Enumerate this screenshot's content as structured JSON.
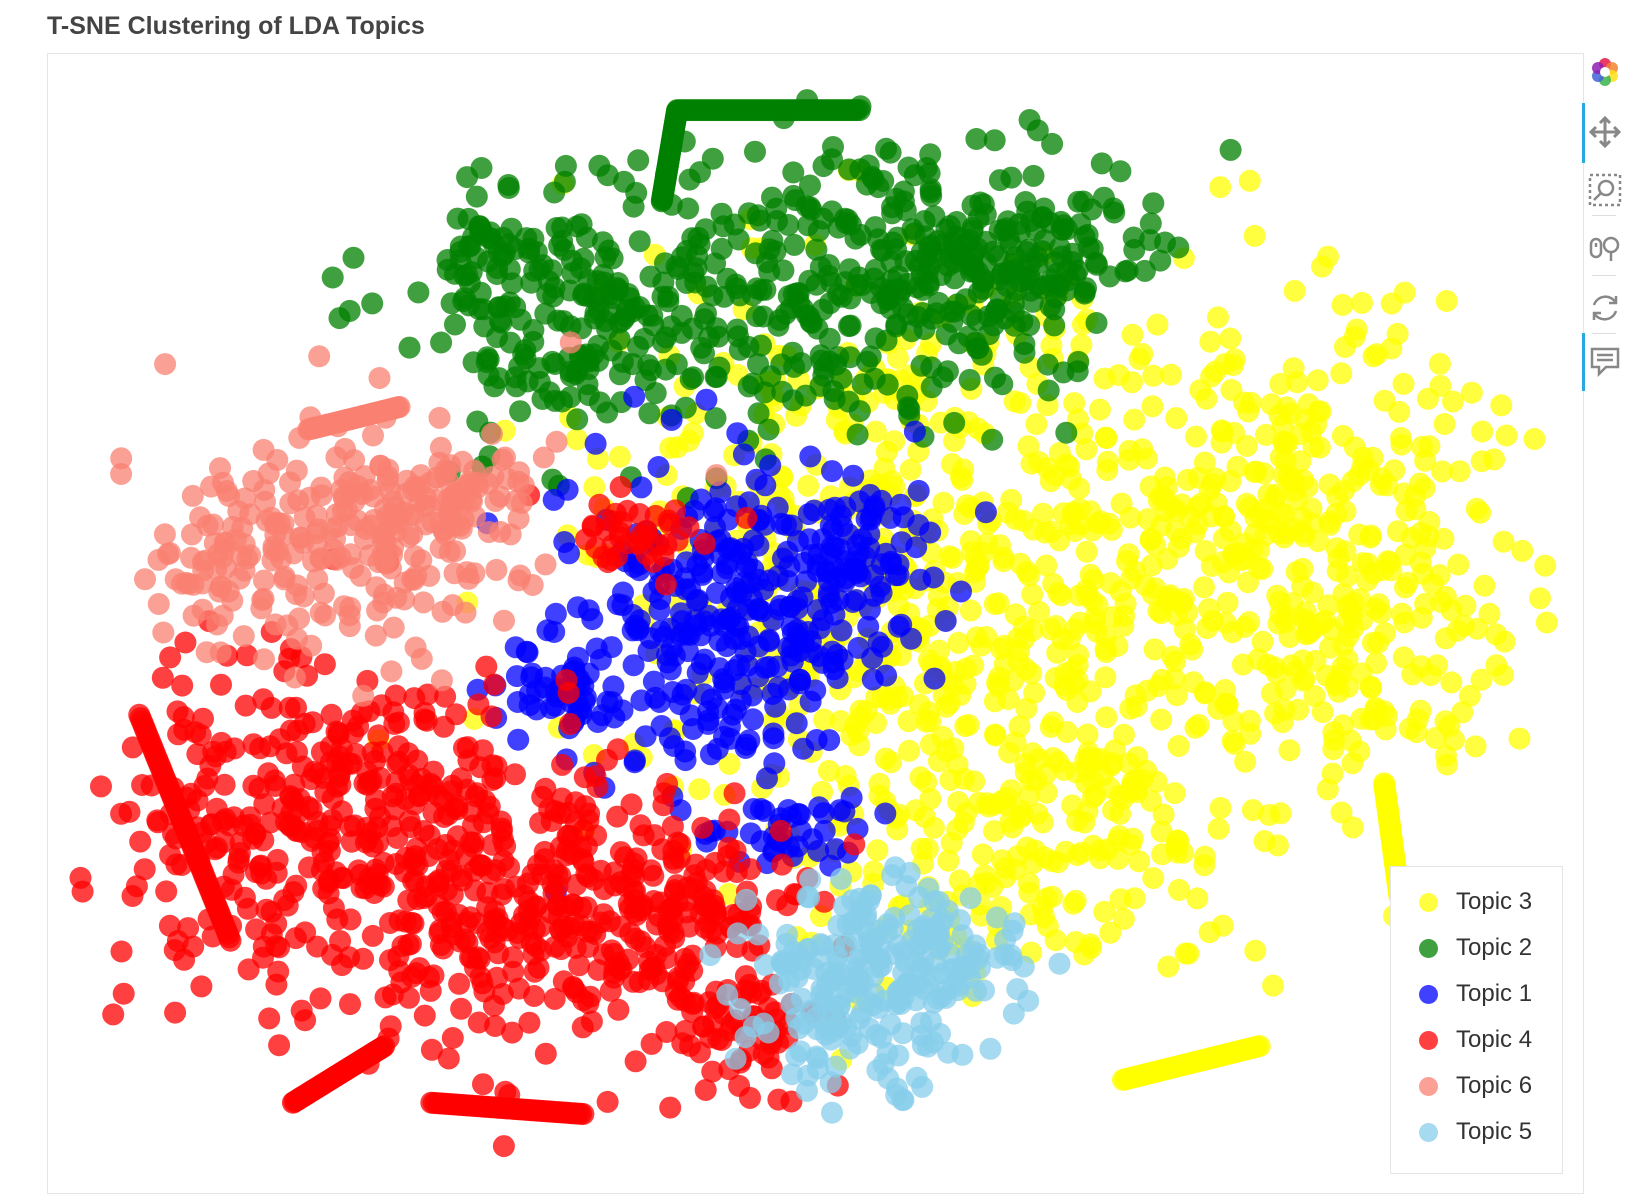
{
  "chart_data": {
    "type": "scatter",
    "title": "T-SNE Clustering of LDA Topics",
    "xlabel": "",
    "ylabel": "",
    "grid": false,
    "axes_visible": false,
    "legend_position": "bottom-right",
    "series": [
      {
        "name": "Topic 3",
        "color": "#ffff00",
        "clusters": [
          [
            [
              0.56,
              0.45,
              0.18,
              0.24,
              500
            ],
            [
              0.78,
              0.4,
              0.16,
              0.18,
              360
            ],
            [
              0.66,
              0.67,
              0.15,
              0.13,
              220
            ],
            [
              0.86,
              0.52,
              0.08,
              0.12,
              110
            ]
          ]
        ],
        "curves": [
          [
            0.7,
            0.9,
            0.79,
            0.87
          ],
          [
            0.87,
            0.64,
            0.88,
            0.74
          ]
        ]
      },
      {
        "name": "Topic 2",
        "color": "#008000",
        "clusters": [
          [
            [
              0.36,
              0.23,
              0.12,
              0.1,
              220
            ],
            [
              0.52,
              0.2,
              0.13,
              0.12,
              260
            ],
            [
              0.63,
              0.18,
              0.09,
              0.08,
              160
            ],
            [
              0.29,
              0.18,
              0.03,
              0.06,
              40
            ]
          ]
        ],
        "curves": [
          [
            0.4,
            0.13,
            0.41,
            0.05
          ],
          [
            0.41,
            0.05,
            0.53,
            0.05
          ]
        ]
      },
      {
        "name": "Topic 1",
        "color": "#0000ff",
        "clusters": [
          [
            [
              0.44,
              0.5,
              0.1,
              0.12,
              320
            ],
            [
              0.52,
              0.43,
              0.05,
              0.05,
              60
            ],
            [
              0.33,
              0.56,
              0.04,
              0.03,
              40
            ],
            [
              0.48,
              0.68,
              0.05,
              0.03,
              40
            ]
          ]
        ],
        "curves": []
      },
      {
        "name": "Topic 4",
        "color": "#ff0000",
        "clusters": [
          [
            [
              0.18,
              0.68,
              0.12,
              0.14,
              380
            ],
            [
              0.32,
              0.74,
              0.1,
              0.12,
              260
            ],
            [
              0.42,
              0.76,
              0.06,
              0.07,
              120
            ],
            [
              0.45,
              0.86,
              0.05,
              0.06,
              60
            ],
            [
              0.38,
              0.42,
              0.05,
              0.03,
              40
            ]
          ]
        ],
        "curves": [
          [
            0.16,
            0.92,
            0.22,
            0.87
          ],
          [
            0.25,
            0.92,
            0.35,
            0.93
          ],
          [
            0.06,
            0.58,
            0.12,
            0.78
          ]
        ]
      },
      {
        "name": "Topic 6",
        "color": "#fa8072",
        "clusters": [
          [
            [
              0.2,
              0.42,
              0.1,
              0.1,
              220
            ],
            [
              0.11,
              0.45,
              0.03,
              0.05,
              40
            ],
            [
              0.26,
              0.38,
              0.05,
              0.04,
              50
            ]
          ]
        ],
        "curves": [
          [
            0.17,
            0.33,
            0.23,
            0.31
          ]
        ]
      },
      {
        "name": "Topic 5",
        "color": "#87ceeb",
        "clusters": [
          [
            [
              0.53,
              0.82,
              0.07,
              0.08,
              180
            ],
            [
              0.58,
              0.79,
              0.06,
              0.04,
              80
            ]
          ]
        ],
        "curves": []
      }
    ],
    "x_range": [
      0,
      1
    ],
    "y_range": [
      0,
      1
    ]
  },
  "legend": {
    "items": [
      {
        "label": "Topic 3",
        "color": "#ffff00"
      },
      {
        "label": "Topic 2",
        "color": "#008000"
      },
      {
        "label": "Topic 1",
        "color": "#0000ff"
      },
      {
        "label": "Topic 4",
        "color": "#ff0000"
      },
      {
        "label": "Topic 6",
        "color": "#fa8072"
      },
      {
        "label": "Topic 5",
        "color": "#87ceeb"
      }
    ]
  },
  "toolbar": {
    "tools": [
      {
        "name": "bokeh-logo-icon"
      },
      {
        "name": "pan-icon"
      },
      {
        "name": "box-zoom-icon"
      },
      {
        "name": "wheel-zoom-icon"
      },
      {
        "name": "reset-icon"
      },
      {
        "name": "hover-icon"
      }
    ]
  }
}
